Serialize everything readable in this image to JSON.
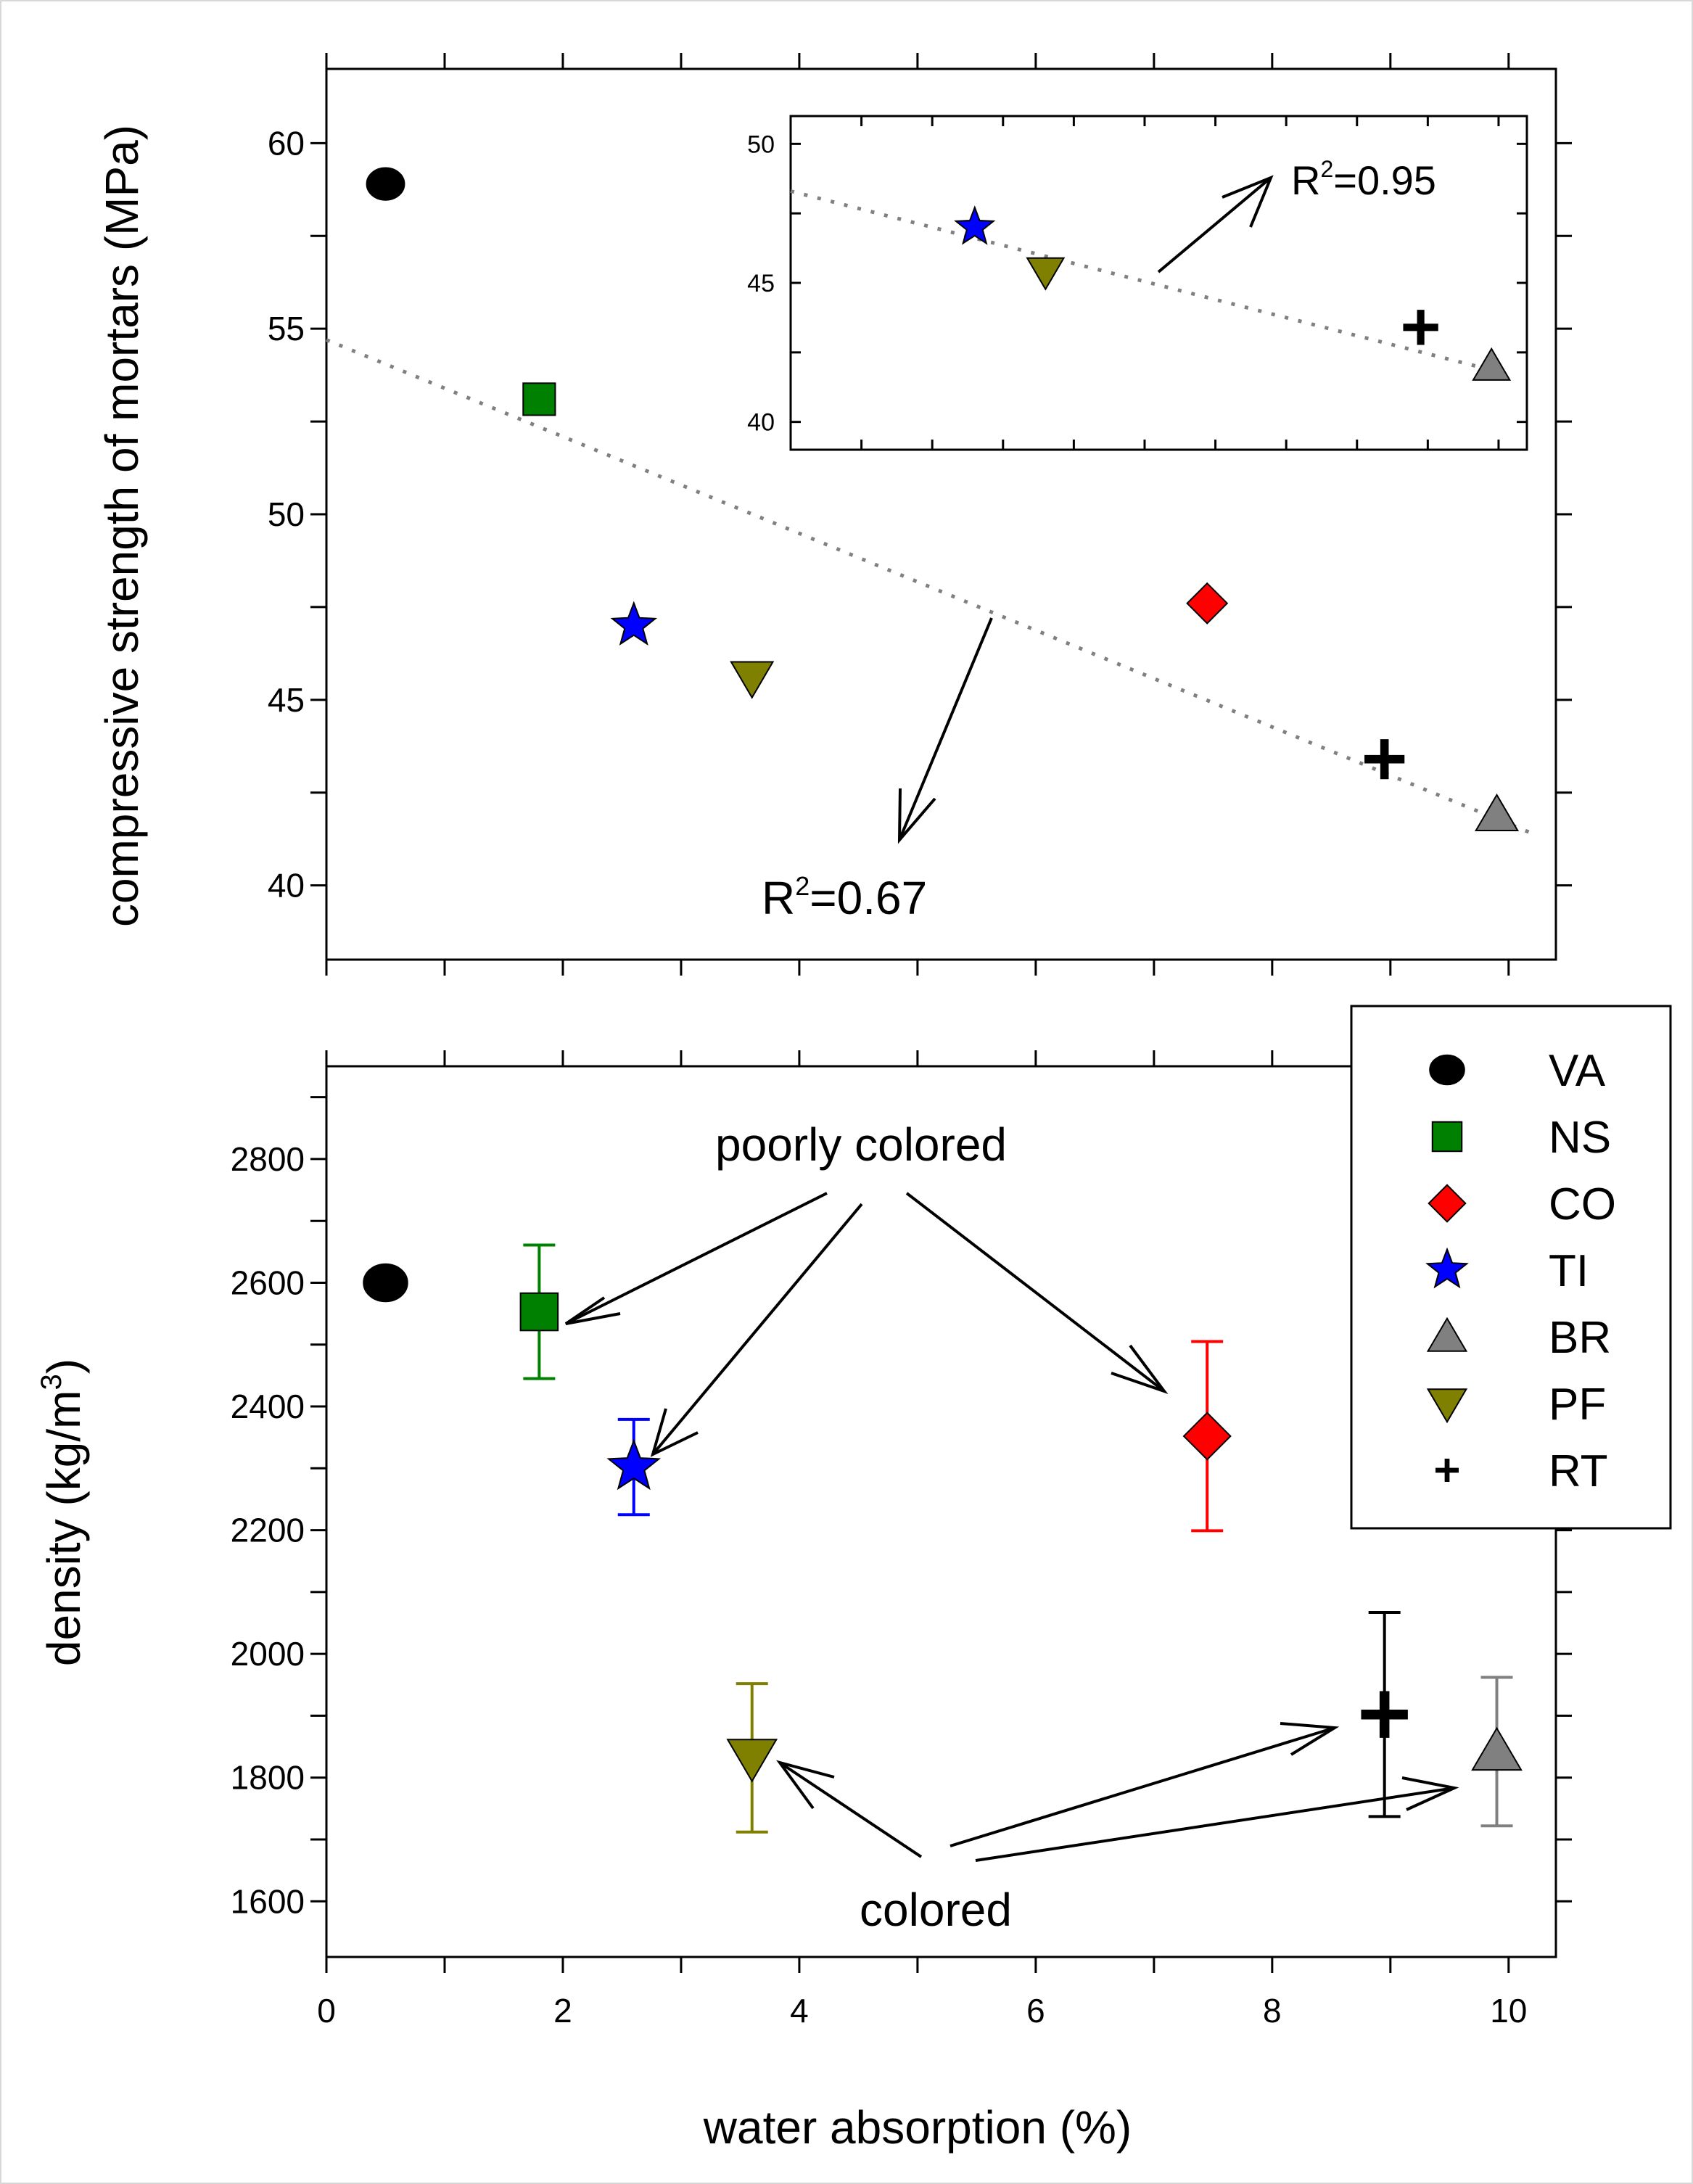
{
  "chart_data": [
    {
      "id": "top",
      "type": "scatter",
      "xlabel": "water absorption (%)",
      "ylabel": "compressive strength of mortars (MPa)",
      "xlim": [
        0,
        10.4
      ],
      "ylim": [
        38,
        62
      ],
      "xticks": [
        0,
        2,
        4,
        6,
        8,
        10
      ],
      "yticks": [
        40,
        45,
        50,
        55,
        60
      ],
      "yticklabels": [
        "40",
        "45",
        "50",
        "55",
        "60"
      ],
      "points": [
        {
          "series": "VA",
          "x": 0.5,
          "y": 58.9
        },
        {
          "series": "NS",
          "x": 1.8,
          "y": 53.1
        },
        {
          "series": "CO",
          "x": 7.45,
          "y": 47.6
        },
        {
          "series": "TI",
          "x": 2.6,
          "y": 47.0
        },
        {
          "series": "BR",
          "x": 9.9,
          "y": 41.9
        },
        {
          "series": "PF",
          "x": 3.6,
          "y": 45.6
        },
        {
          "series": "RT",
          "x": 8.95,
          "y": 43.4
        }
      ],
      "fit": {
        "x": [
          0,
          10.2
        ],
        "y": [
          54.7,
          41.4
        ],
        "r2_label": "R² = 0.67",
        "r2_base": "R",
        "r2_sup": "2",
        "r2_rest": "=0.67"
      }
    },
    {
      "id": "inset",
      "type": "scatter",
      "xlim": [
        0,
        10.4
      ],
      "ylim": [
        39,
        51
      ],
      "xticks": [
        0,
        2,
        4,
        6,
        8,
        10
      ],
      "yticks": [
        40,
        45,
        50
      ],
      "yticklabels": [
        "40",
        "45",
        "50"
      ],
      "points": [
        {
          "series": "TI",
          "x": 2.6,
          "y": 47.0
        },
        {
          "series": "PF",
          "x": 3.6,
          "y": 45.4
        },
        {
          "series": "RT",
          "x": 8.9,
          "y": 43.4
        },
        {
          "series": "BR",
          "x": 9.9,
          "y": 42.0
        }
      ],
      "fit": {
        "x": [
          0,
          10.0
        ],
        "y": [
          48.3,
          41.8
        ],
        "r2_label": "R² = 0.95",
        "r2_base": "R",
        "r2_sup": "2",
        "r2_rest": "=0.95"
      }
    },
    {
      "id": "bottom",
      "type": "scatter",
      "xlabel": "water absorption (%)",
      "ylabel": "density (kg/m³)",
      "ylabel_base": "density (kg/m",
      "ylabel_sup": "3",
      "ylabel_end": ")",
      "xlim": [
        0,
        10.4
      ],
      "ylim": [
        1510,
        2950
      ],
      "xticks": [
        0,
        2,
        4,
        6,
        8,
        10
      ],
      "xticklabels": [
        "0",
        "2",
        "4",
        "6",
        "8",
        "10"
      ],
      "yticks": [
        1600,
        1800,
        2000,
        2200,
        2400,
        2600,
        2800
      ],
      "yticklabels": [
        "1600",
        "1800",
        "2000",
        "2200",
        "2400",
        "2600",
        "2800"
      ],
      "points": [
        {
          "series": "VA",
          "x": 0.5,
          "y": 2600,
          "err": 0
        },
        {
          "series": "NS",
          "x": 1.8,
          "y": 2553,
          "err": 108
        },
        {
          "series": "CO",
          "x": 7.45,
          "y": 2352,
          "err": 153
        },
        {
          "series": "TI",
          "x": 2.6,
          "y": 2302,
          "err": 77
        },
        {
          "series": "BR",
          "x": 9.9,
          "y": 1842,
          "err": 120
        },
        {
          "series": "PF",
          "x": 3.6,
          "y": 1832,
          "err": 120
        },
        {
          "series": "RT",
          "x": 8.95,
          "y": 1902,
          "err": 165
        }
      ],
      "annotations": {
        "poorly": "poorly colored",
        "colored": "colored"
      }
    }
  ],
  "legend": {
    "placement": "right, overlapping both panels",
    "items": [
      {
        "name": "VA",
        "marker": "circle",
        "color": "#000000"
      },
      {
        "name": "NS",
        "marker": "square",
        "color": "#008000"
      },
      {
        "name": "CO",
        "marker": "diamond",
        "color": "#ff0000"
      },
      {
        "name": "TI",
        "marker": "star",
        "color": "#0000ff"
      },
      {
        "name": "BR",
        "marker": "triangle-up",
        "color": "#808080"
      },
      {
        "name": "PF",
        "marker": "triangle-down",
        "color": "#808000"
      },
      {
        "name": "RT",
        "marker": "plus",
        "color": "#000000"
      }
    ]
  },
  "errorbar_colors": {
    "VA": "#000000",
    "NS": "#008000",
    "CO": "#ff0000",
    "TI": "#0000ff",
    "BR": "#808080",
    "PF": "#808000",
    "RT": "#000000"
  },
  "trend_color": "#808080"
}
